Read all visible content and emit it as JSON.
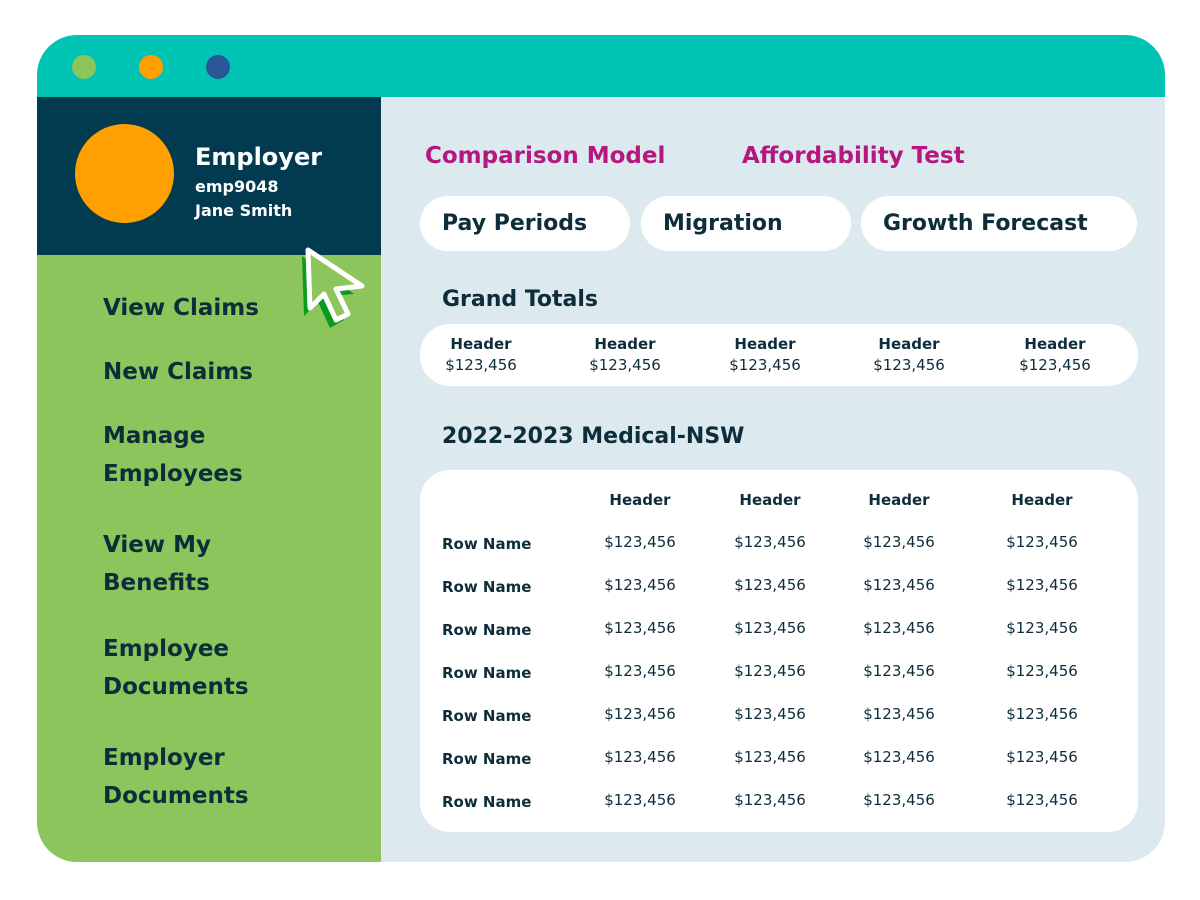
{
  "window": {
    "dots": [
      "#8bc55c",
      "#ffa000",
      "#2b5797"
    ]
  },
  "profile": {
    "role": "Employer",
    "id": "emp9048",
    "name": "Jane Smith"
  },
  "sidebar": {
    "items": [
      {
        "label": "View Claims"
      },
      {
        "label": "New Claims"
      },
      {
        "label": "Manage Employees"
      },
      {
        "label": "View My Benefits"
      },
      {
        "label": "Employee Documents"
      },
      {
        "label": "Employer Documents"
      }
    ]
  },
  "tabs": [
    {
      "label": "Comparison Model"
    },
    {
      "label": "Affordability Test"
    }
  ],
  "pills": [
    {
      "label": "Pay Periods"
    },
    {
      "label": "Migration"
    },
    {
      "label": "Growth Forecast"
    }
  ],
  "grand_totals": {
    "title": "Grand Totals",
    "columns": [
      {
        "header": "Header",
        "value": "$123,456"
      },
      {
        "header": "Header",
        "value": "$123,456"
      },
      {
        "header": "Header",
        "value": "$123,456"
      },
      {
        "header": "Header",
        "value": "$123,456"
      },
      {
        "header": "Header",
        "value": "$123,456"
      }
    ]
  },
  "table": {
    "title": "2022-2023 Medical-NSW",
    "headers": [
      "Header",
      "Header",
      "Header",
      "Header"
    ],
    "rows": [
      {
        "name": "Row Name",
        "values": [
          "$123,456",
          "$123,456",
          "$123,456",
          "$123,456"
        ]
      },
      {
        "name": "Row Name",
        "values": [
          "$123,456",
          "$123,456",
          "$123,456",
          "$123,456"
        ]
      },
      {
        "name": "Row Name",
        "values": [
          "$123,456",
          "$123,456",
          "$123,456",
          "$123,456"
        ]
      },
      {
        "name": "Row Name",
        "values": [
          "$123,456",
          "$123,456",
          "$123,456",
          "$123,456"
        ]
      },
      {
        "name": "Row Name",
        "values": [
          "$123,456",
          "$123,456",
          "$123,456",
          "$123,456"
        ]
      },
      {
        "name": "Row Name",
        "values": [
          "$123,456",
          "$123,456",
          "$123,456",
          "$123,456"
        ]
      },
      {
        "name": "Row Name",
        "values": [
          "$123,456",
          "$123,456",
          "$123,456",
          "$123,456"
        ]
      }
    ]
  }
}
